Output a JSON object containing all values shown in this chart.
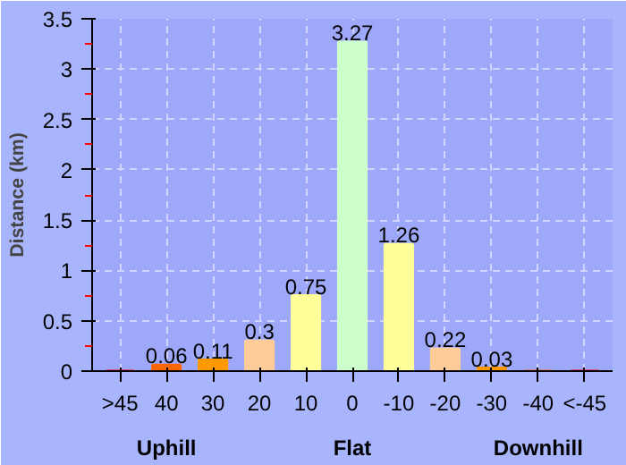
{
  "chart_data": {
    "type": "bar",
    "ylabel": "Distance (km)",
    "categories": [
      ">45",
      "40",
      "30",
      "20",
      "10",
      "0",
      "-10",
      "-20",
      "-30",
      "-40",
      "<-45"
    ],
    "values": [
      0,
      0.06,
      0.11,
      0.3,
      0.75,
      3.27,
      1.26,
      0.22,
      0.03,
      0,
      0
    ],
    "value_labels": [
      null,
      "0.06",
      "0.11",
      "0.3",
      "0.75",
      "3.27",
      "1.26",
      "0.22",
      "0.03",
      null,
      null
    ],
    "colors": [
      "#ff0000",
      "#ff6600",
      "#ff9900",
      "#ffcc99",
      "#ffff99",
      "#ccffcc",
      "#ffff99",
      "#ffcc99",
      "#ff9900",
      "#ff6600",
      "#ff0000"
    ],
    "ylim": [
      0,
      3.5
    ],
    "yticks": [
      0,
      0.5,
      1,
      1.5,
      2,
      2.5,
      3,
      3.5
    ],
    "grid": true,
    "annotations": [
      "Uphill",
      "Flat",
      "Downhill"
    ]
  }
}
